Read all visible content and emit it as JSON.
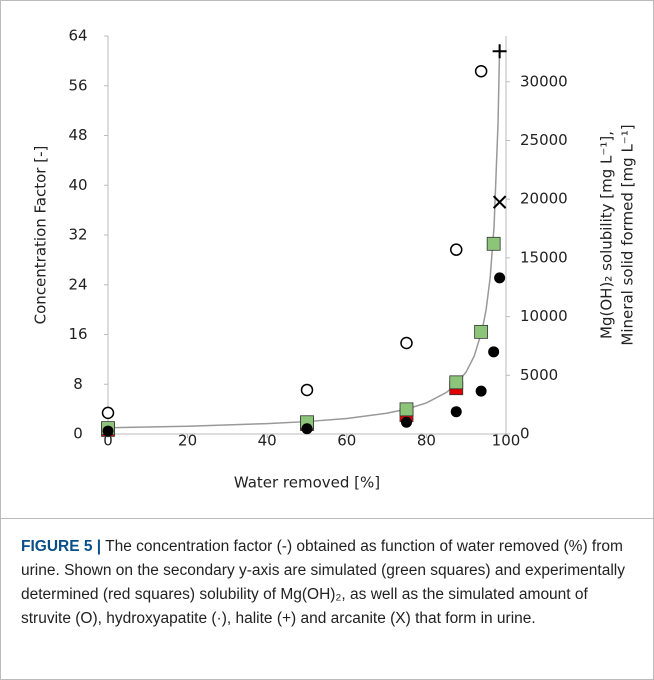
{
  "chart_data": {
    "type": "scatter",
    "xlabel": "Water removed [%]",
    "ylabel": "Concentration Factor [-]",
    "y2label": [
      "Mg(OH)₂ solubility [mg L⁻¹],",
      "Mineral solid formed [mg L⁻¹]"
    ],
    "xlim": [
      0,
      100
    ],
    "xticks": [
      0,
      20,
      40,
      60,
      80,
      100
    ],
    "ylim": [
      0,
      64
    ],
    "yticks": [
      0,
      8,
      16,
      24,
      32,
      40,
      48,
      56,
      64
    ],
    "y2lim": [
      0,
      33900
    ],
    "y2ticks": [
      0,
      5000,
      10000,
      15000,
      20000,
      25000,
      30000
    ],
    "series": [
      {
        "type": "line",
        "color": "#999999",
        "axis": "y",
        "x": [
          0,
          20,
          40,
          50,
          60,
          70,
          75,
          80,
          85,
          87.5,
          90,
          92,
          94,
          95,
          96,
          97,
          98,
          98.4
        ],
        "values": [
          1,
          1.25,
          1.67,
          2,
          2.5,
          3.33,
          4,
          5,
          6.67,
          8,
          10,
          12.5,
          16.67,
          20,
          25,
          33.33,
          50,
          62.5
        ]
      },
      {
        "type": "scatter",
        "marker": "square",
        "color": "#e00000",
        "axis": "y2",
        "x": [
          0,
          50,
          75,
          87.5
        ],
        "values": [
          350,
          850,
          1600,
          3900
        ]
      },
      {
        "type": "scatter",
        "marker": "square",
        "color": "#8cc47a",
        "axis": "y2",
        "x": [
          0,
          50,
          75,
          87.5,
          93.75,
          96.9
        ],
        "values": [
          500,
          1000,
          2100,
          4400,
          8700,
          16200
        ]
      },
      {
        "type": "scatter",
        "marker": "circle-open",
        "color": "#000000",
        "axis": "y2",
        "x": [
          0,
          50,
          75,
          87.5,
          93.75
        ],
        "values": [
          1800,
          3750,
          7750,
          15700,
          30900
        ]
      },
      {
        "type": "scatter",
        "marker": "circle",
        "color": "#000000",
        "axis": "y2",
        "x": [
          0,
          50,
          75,
          87.5,
          93.75,
          96.9,
          98.4
        ],
        "values": [
          250,
          450,
          1000,
          1900,
          3650,
          7000,
          13300
        ]
      },
      {
        "type": "scatter",
        "marker": "plus",
        "color": "#000000",
        "axis": "y2",
        "x": [
          98.4
        ],
        "values": [
          32600
        ]
      },
      {
        "type": "scatter",
        "marker": "x",
        "color": "#000000",
        "axis": "y2",
        "x": [
          98.4
        ],
        "values": [
          19750
        ]
      }
    ]
  },
  "caption": {
    "label": "FIGURE 5 |",
    "text": "The concentration factor (-) obtained as function of water removed (%) from urine. Shown on the secondary y-axis are simulated (green squares) and experimentally determined (red squares) solubility of Mg(OH)₂, as well as the simulated amount of struvite (O), hydroxyapatite (·), halite (+) and arcanite (X) that form in urine."
  }
}
